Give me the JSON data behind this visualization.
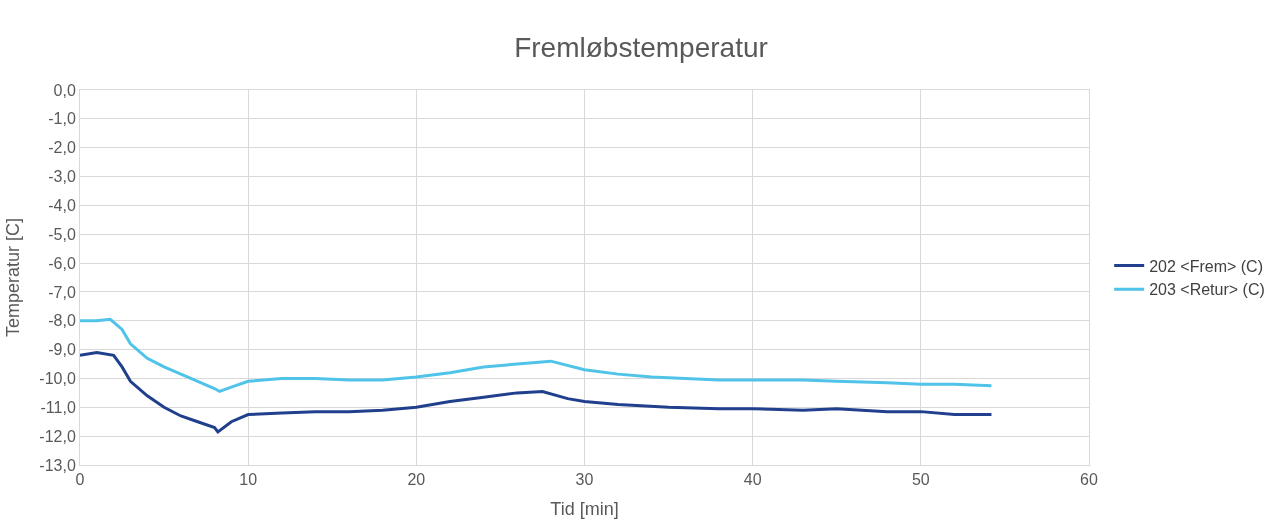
{
  "chart_data": {
    "type": "line",
    "title": "Fremløbstemperatur",
    "xlabel": "Tid [min]",
    "ylabel": "Temperatur [C]",
    "xlim": [
      0,
      60
    ],
    "xticks": [
      0,
      10,
      20,
      30,
      40,
      50,
      60
    ],
    "ylim": [
      -13,
      0
    ],
    "yticks": [
      {
        "value": 0,
        "label": "0,0"
      },
      {
        "value": -1,
        "label": "-1,0"
      },
      {
        "value": -2,
        "label": "-2,0"
      },
      {
        "value": -3,
        "label": "-3,0"
      },
      {
        "value": -4,
        "label": "-4,0"
      },
      {
        "value": -5,
        "label": "-5,0"
      },
      {
        "value": -6,
        "label": "-6,0"
      },
      {
        "value": -7,
        "label": "-7,0"
      },
      {
        "value": -8,
        "label": "-8,0"
      },
      {
        "value": -9,
        "label": "-9,0"
      },
      {
        "value": -10,
        "label": "-10,0"
      },
      {
        "value": -11,
        "label": "-11,0"
      },
      {
        "value": -12,
        "label": "-12,0"
      },
      {
        "value": -13,
        "label": "-13,0"
      }
    ],
    "grid": true,
    "legend": "right",
    "marker": "none",
    "line_style": "solid",
    "series": [
      {
        "name": "202 <Frem> (C)",
        "color": "#203f8c",
        "x": [
          0,
          1,
          2,
          2.5,
          3,
          4,
          5,
          6,
          7,
          8,
          8.2,
          9,
          10,
          12,
          14,
          16,
          18,
          20,
          22,
          24,
          26,
          27.5,
          29,
          30,
          32,
          35,
          38,
          40,
          43,
          45,
          48,
          50,
          52,
          54.2
        ],
        "values": [
          -9.2,
          -9.1,
          -9.2,
          -9.6,
          -10.1,
          -10.6,
          -11.0,
          -11.3,
          -11.5,
          -11.7,
          -11.85,
          -11.5,
          -11.25,
          -11.2,
          -11.15,
          -11.15,
          -11.1,
          -11.0,
          -10.8,
          -10.65,
          -10.5,
          -10.45,
          -10.7,
          -10.8,
          -10.9,
          -11.0,
          -11.05,
          -11.05,
          -11.1,
          -11.05,
          -11.15,
          -11.15,
          -11.25,
          -11.25
        ]
      },
      {
        "name": "203 <Retur> (C)",
        "color": "#4fc3e8",
        "x": [
          0,
          1,
          1.8,
          2.5,
          3,
          4,
          5,
          6,
          7,
          8,
          8.3,
          9,
          10,
          12,
          14,
          16,
          18,
          20,
          22,
          24,
          26,
          28,
          30,
          32,
          34,
          36,
          38,
          40,
          43,
          45,
          48,
          50,
          52,
          54.2
        ],
        "values": [
          -8.0,
          -8.0,
          -7.95,
          -8.3,
          -8.8,
          -9.3,
          -9.6,
          -9.85,
          -10.1,
          -10.35,
          -10.45,
          -10.3,
          -10.1,
          -10.0,
          -10.0,
          -10.05,
          -10.05,
          -9.95,
          -9.8,
          -9.6,
          -9.5,
          -9.4,
          -9.7,
          -9.85,
          -9.95,
          -10.0,
          -10.05,
          -10.05,
          -10.05,
          -10.1,
          -10.15,
          -10.2,
          -10.2,
          -10.25
        ]
      }
    ]
  }
}
